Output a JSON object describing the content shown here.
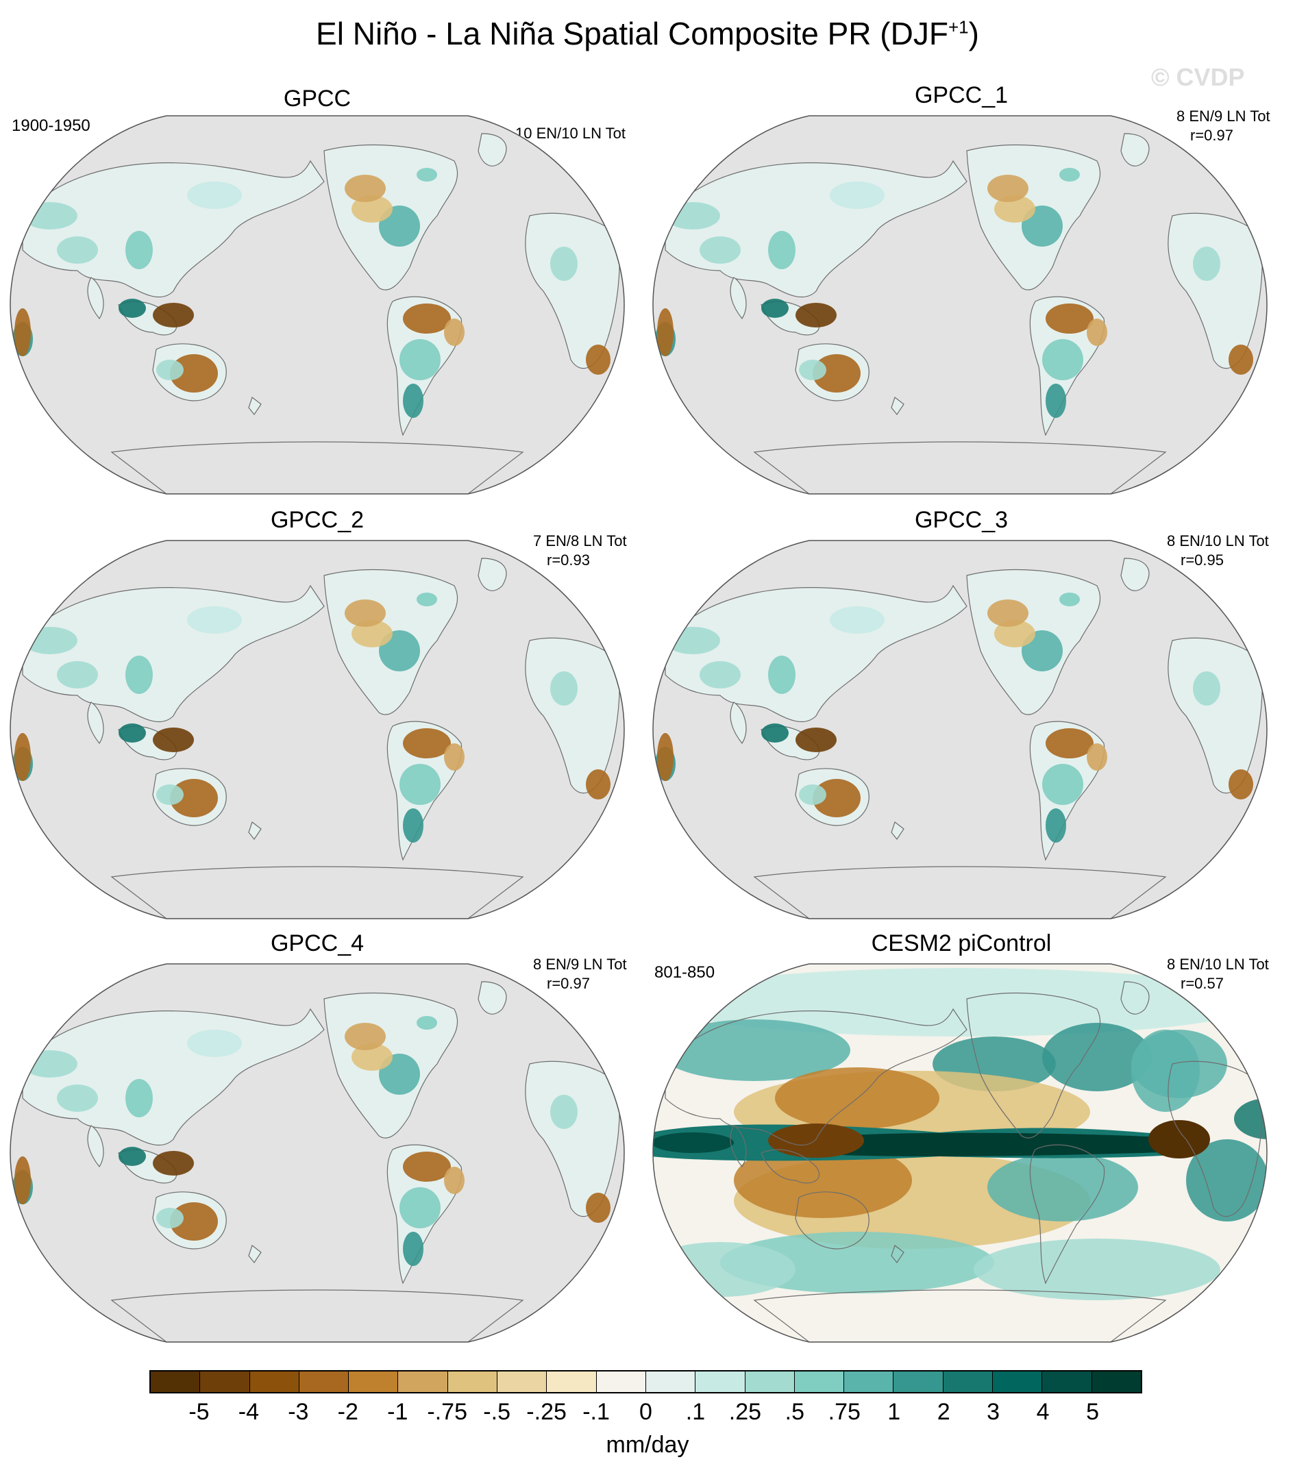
{
  "title": "El Niño - La Niña Spatial Composite PR (DJF",
  "title_superscript": "+1",
  "title_close": ")",
  "watermark": "© CVDP",
  "panels": [
    {
      "name": "GPCC",
      "period": "1900-1950",
      "stats_line1": "10 EN/10 LN Tot",
      "stats_line2": ""
    },
    {
      "name": "GPCC_1",
      "period": "",
      "stats_line1": "8 EN/9 LN Tot",
      "stats_line2": "r=0.97"
    },
    {
      "name": "GPCC_2",
      "period": "",
      "stats_line1": "7 EN/8 LN Tot",
      "stats_line2": "r=0.93"
    },
    {
      "name": "GPCC_3",
      "period": "",
      "stats_line1": "8 EN/10 LN Tot",
      "stats_line2": "r=0.95"
    },
    {
      "name": "GPCC_4",
      "period": "",
      "stats_line1": "8 EN/9 LN Tot",
      "stats_line2": "r=0.97"
    },
    {
      "name": "CESM2 piControl",
      "period": "801-850",
      "stats_line1": "8 EN/10 LN Tot",
      "stats_line2": "r=0.57"
    }
  ],
  "colorbar": {
    "units": "mm/day",
    "labels": [
      "-5",
      "-4",
      "-3",
      "-2",
      "-1",
      "-.75",
      "-.5",
      "-.25",
      "-.1",
      "0",
      ".1",
      ".25",
      ".5",
      ".75",
      "1",
      "2",
      "3",
      "4",
      "5"
    ],
    "colors": [
      "#543005",
      "#6f3f0a",
      "#8c510a",
      "#a8681f",
      "#bf812d",
      "#d2a55f",
      "#dfc27d",
      "#ebd6a3",
      "#f6e8c3",
      "#f5f3ec",
      "#e4f0ee",
      "#c7eae5",
      "#a3dbd1",
      "#80cdc1",
      "#5ab4ac",
      "#35978f",
      "#16786f",
      "#01665e",
      "#024d44",
      "#003c30"
    ]
  }
}
